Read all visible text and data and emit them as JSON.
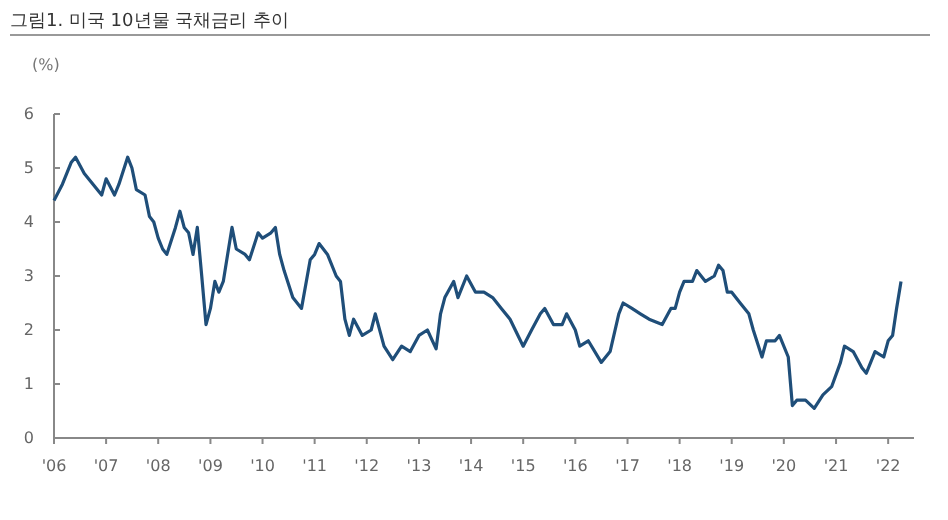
{
  "chart_data": {
    "type": "line",
    "title": "그림1. 미국 10년물 국채금리 추이",
    "ylabel": "(%)",
    "x": [
      "2006-01",
      "2006-03",
      "2006-05",
      "2006-06",
      "2006-08",
      "2006-10",
      "2006-12",
      "2007-01",
      "2007-03",
      "2007-04",
      "2007-06",
      "2007-07",
      "2007-08",
      "2007-10",
      "2007-11",
      "2007-12",
      "2008-01",
      "2008-02",
      "2008-03",
      "2008-05",
      "2008-06",
      "2008-07",
      "2008-08",
      "2008-09",
      "2008-10",
      "2008-11",
      "2008-12",
      "2009-01",
      "2009-02",
      "2009-03",
      "2009-04",
      "2009-06",
      "2009-07",
      "2009-09",
      "2009-10",
      "2009-12",
      "2010-01",
      "2010-03",
      "2010-04",
      "2010-05",
      "2010-06",
      "2010-08",
      "2010-10",
      "2010-12",
      "2011-01",
      "2011-02",
      "2011-04",
      "2011-06",
      "2011-07",
      "2011-08",
      "2011-09",
      "2011-10",
      "2011-12",
      "2012-02",
      "2012-03",
      "2012-05",
      "2012-07",
      "2012-09",
      "2012-11",
      "2013-01",
      "2013-03",
      "2013-05",
      "2013-06",
      "2013-07",
      "2013-09",
      "2013-10",
      "2013-12",
      "2014-02",
      "2014-04",
      "2014-06",
      "2014-08",
      "2014-10",
      "2015-01",
      "2015-03",
      "2015-05",
      "2015-06",
      "2015-08",
      "2015-10",
      "2015-11",
      "2016-01",
      "2016-02",
      "2016-04",
      "2016-07",
      "2016-09",
      "2016-11",
      "2016-12",
      "2017-02",
      "2017-04",
      "2017-06",
      "2017-09",
      "2017-11",
      "2017-12",
      "2018-01",
      "2018-02",
      "2018-04",
      "2018-05",
      "2018-07",
      "2018-09",
      "2018-10",
      "2018-11",
      "2018-12",
      "2019-01",
      "2019-03",
      "2019-05",
      "2019-06",
      "2019-08",
      "2019-09",
      "2019-11",
      "2019-12",
      "2020-02",
      "2020-03",
      "2020-04",
      "2020-06",
      "2020-08",
      "2020-10",
      "2020-12",
      "2021-02",
      "2021-03",
      "2021-05",
      "2021-07",
      "2021-08",
      "2021-10",
      "2021-12",
      "2022-01",
      "2022-02",
      "2022-03",
      "2022-04"
    ],
    "series": [
      {
        "color": "#1f4e79",
        "values": [
          4.4,
          4.7,
          5.1,
          5.2,
          4.9,
          4.7,
          4.5,
          4.8,
          4.5,
          4.7,
          5.2,
          5.0,
          4.6,
          4.5,
          4.1,
          4.0,
          3.7,
          3.5,
          3.4,
          3.9,
          4.2,
          3.9,
          3.8,
          3.4,
          3.9,
          3.0,
          2.1,
          2.4,
          2.9,
          2.7,
          2.9,
          3.9,
          3.5,
          3.4,
          3.3,
          3.8,
          3.7,
          3.8,
          3.9,
          3.4,
          3.1,
          2.6,
          2.4,
          3.3,
          3.4,
          3.6,
          3.4,
          3.0,
          2.9,
          2.2,
          1.9,
          2.2,
          1.9,
          2.0,
          2.3,
          1.7,
          1.45,
          1.7,
          1.6,
          1.9,
          2.0,
          1.65,
          2.3,
          2.6,
          2.9,
          2.6,
          3.0,
          2.7,
          2.7,
          2.6,
          2.4,
          2.2,
          1.7,
          2.0,
          2.3,
          2.4,
          2.1,
          2.1,
          2.3,
          2.0,
          1.7,
          1.8,
          1.4,
          1.6,
          2.3,
          2.5,
          2.4,
          2.3,
          2.2,
          2.1,
          2.4,
          2.4,
          2.7,
          2.9,
          2.9,
          3.1,
          2.9,
          3.0,
          3.2,
          3.1,
          2.7,
          2.7,
          2.5,
          2.3,
          2.0,
          1.5,
          1.8,
          1.8,
          1.9,
          1.5,
          0.6,
          0.7,
          0.7,
          0.55,
          0.8,
          0.95,
          1.4,
          1.7,
          1.6,
          1.3,
          1.2,
          1.6,
          1.5,
          1.8,
          1.9,
          2.4,
          2.9
        ]
      }
    ],
    "xlim": [
      "2006-01",
      "2022-07"
    ],
    "xticks": [
      {
        "value": "2006",
        "label": "'06"
      },
      {
        "value": "2007",
        "label": "'07"
      },
      {
        "value": "2008",
        "label": "'08"
      },
      {
        "value": "2009",
        "label": "'09"
      },
      {
        "value": "2010",
        "label": "'10"
      },
      {
        "value": "2011",
        "label": "'11"
      },
      {
        "value": "2012",
        "label": "'12"
      },
      {
        "value": "2013",
        "label": "'13"
      },
      {
        "value": "2014",
        "label": "'14"
      },
      {
        "value": "2015",
        "label": "'15"
      },
      {
        "value": "2016",
        "label": "'16"
      },
      {
        "value": "2017",
        "label": "'17"
      },
      {
        "value": "2018",
        "label": "'18"
      },
      {
        "value": "2019",
        "label": "'19"
      },
      {
        "value": "2020",
        "label": "'20"
      },
      {
        "value": "2021",
        "label": "'21"
      },
      {
        "value": "2022",
        "label": "'22"
      }
    ],
    "ylim": [
      0,
      6
    ],
    "yticks": [
      0,
      1,
      2,
      3,
      4,
      5,
      6
    ],
    "grid": false,
    "marker": "none",
    "line_style": "solid"
  }
}
